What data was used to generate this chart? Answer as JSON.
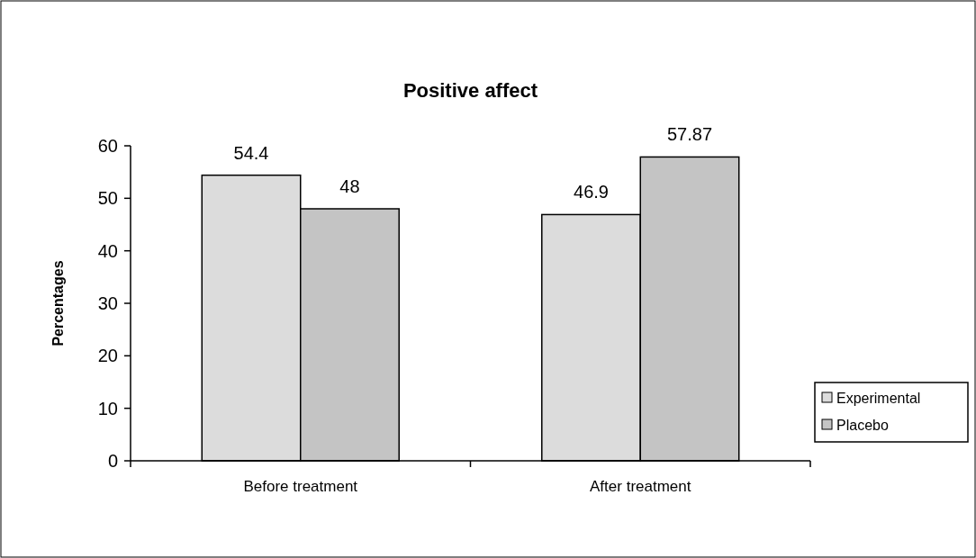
{
  "chart_data": {
    "type": "bar",
    "title": "Positive affect",
    "ylabel": "Percentages",
    "categories": [
      "Before treatment",
      "After treatment"
    ],
    "series": [
      {
        "name": "Experimental",
        "color": "#dcdcdc",
        "values": [
          54.4,
          46.9
        ]
      },
      {
        "name": "Placebo",
        "color": "#c4c4c4",
        "values": [
          48,
          57.87
        ]
      }
    ],
    "ylim": [
      0,
      60
    ],
    "yticks": [
      0,
      10,
      20,
      30,
      40,
      50,
      60
    ],
    "data_labels": true,
    "legend": "right",
    "grid": false
  }
}
